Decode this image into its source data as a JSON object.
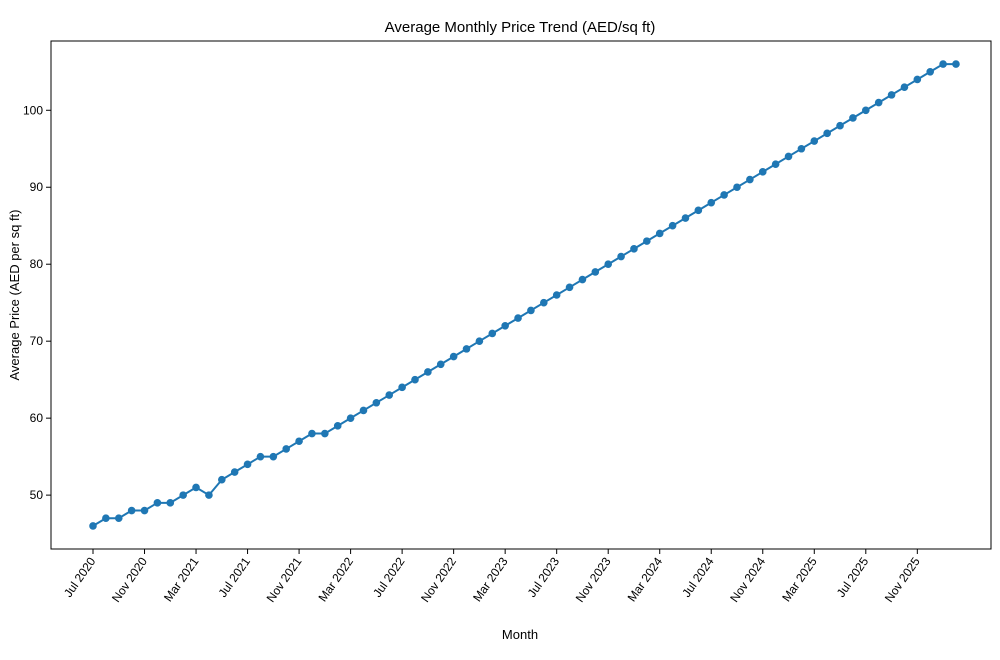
{
  "chart_data": {
    "type": "line",
    "title": "Average Monthly Price Trend (AED/sq ft)",
    "xlabel": "Month",
    "ylabel": "Average Price (AED per sq ft)",
    "x_start": "2020-07",
    "x_ticks": [
      "Jul 2020",
      "Nov 2020",
      "Mar 2021",
      "Jul 2021",
      "Nov 2021",
      "Mar 2022",
      "Jul 2022",
      "Nov 2022",
      "Mar 2023",
      "Jul 2023",
      "Nov 2023",
      "Mar 2024",
      "Jul 2024",
      "Nov 2024",
      "Mar 2025",
      "Jul 2025",
      "Nov 2025"
    ],
    "y_ticks": [
      50,
      60,
      70,
      80,
      90,
      100
    ],
    "ylim": [
      43,
      109
    ],
    "grid": false,
    "marker": "circle",
    "color": "#1f77b4",
    "series": [
      {
        "x": [
          "2020-07",
          "2020-08",
          "2020-09",
          "2020-10",
          "2020-11",
          "2020-12",
          "2021-01",
          "2021-02",
          "2021-03",
          "2021-04",
          "2021-05",
          "2021-06",
          "2021-07",
          "2021-08",
          "2021-09",
          "2021-10",
          "2021-11",
          "2021-12",
          "2022-01",
          "2022-02",
          "2022-03",
          "2022-04",
          "2022-05",
          "2022-06",
          "2022-07",
          "2022-08",
          "2022-09",
          "2022-10",
          "2022-11",
          "2022-12",
          "2023-01",
          "2023-02",
          "2023-03",
          "2023-04",
          "2023-05",
          "2023-06",
          "2023-07",
          "2023-08",
          "2023-09",
          "2023-10",
          "2023-11",
          "2023-12",
          "2024-01",
          "2024-02",
          "2024-03",
          "2024-04",
          "2024-05",
          "2024-06",
          "2024-07",
          "2024-08",
          "2024-09",
          "2024-10",
          "2024-11",
          "2024-12",
          "2025-01",
          "2025-02",
          "2025-03",
          "2025-04",
          "2025-05",
          "2025-06",
          "2025-07",
          "2025-08",
          "2025-09",
          "2025-10",
          "2025-11",
          "2025-12",
          "2026-01",
          "2026-02"
        ],
        "values": [
          46,
          47,
          47,
          48,
          48,
          49,
          49,
          50,
          51,
          50,
          52,
          53,
          54,
          55,
          55,
          56,
          57,
          58,
          58,
          59,
          60,
          61,
          62,
          63,
          64,
          65,
          66,
          67,
          68,
          69,
          70,
          71,
          72,
          73,
          74,
          75,
          76,
          77,
          78,
          79,
          80,
          81,
          82,
          83,
          84,
          85,
          86,
          87,
          88,
          89,
          90,
          91,
          92,
          93,
          94,
          95,
          96,
          97,
          98,
          99,
          100,
          101,
          102,
          103,
          104,
          105,
          106,
          106
        ]
      }
    ]
  }
}
